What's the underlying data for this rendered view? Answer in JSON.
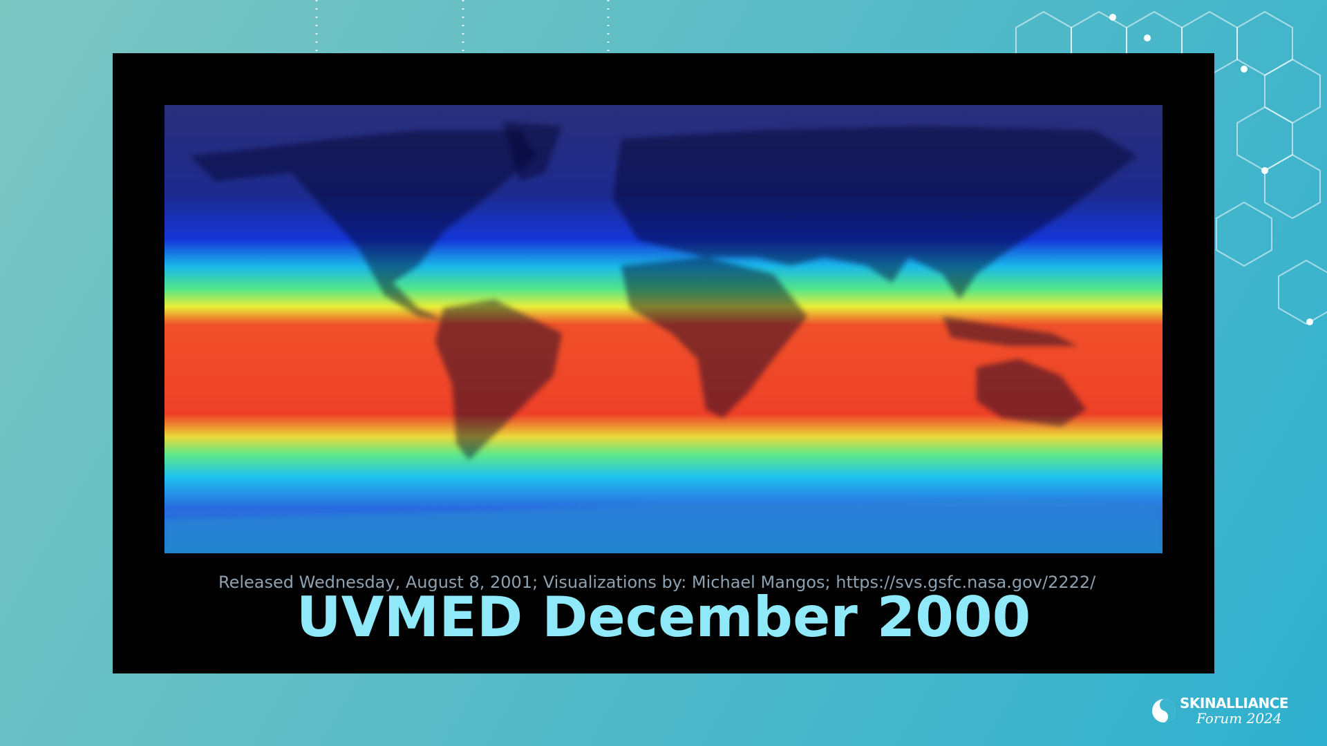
{
  "slide": {
    "title": "UVMED December 2000",
    "map": {
      "credit": "Released Wednesday, August 8, 2001; Visualizations by: Michael Mangos; https://svs.gsfc.nasa.gov/2222/"
    },
    "logo": {
      "brand": "SKINALLIANCE",
      "event": "Forum 2024"
    }
  }
}
